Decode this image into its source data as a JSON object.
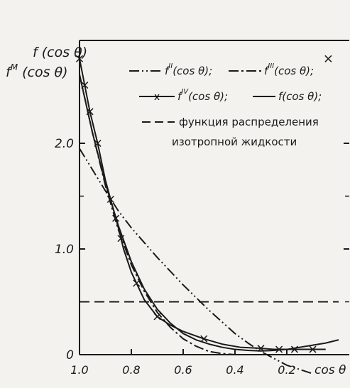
{
  "chart_data": {
    "type": "line",
    "ylabel": [
      "f (cos θ)",
      "f^M (cos θ)"
    ],
    "ylabel_parts": {
      "line1": "f (cos θ)",
      "line2_base": "f",
      "line2_sup": "M",
      "line2_arg": " (cos θ)"
    },
    "xlabel": "cos θ",
    "x_reversed": true,
    "xlim": [
      1.0,
      0.0
    ],
    "ylim": [
      0,
      2.6
    ],
    "x_ticks": [
      {
        "value": 1.0,
        "label": "1.0"
      },
      {
        "value": 0.8,
        "label": "0.8"
      },
      {
        "value": 0.6,
        "label": "0.6"
      },
      {
        "value": 0.4,
        "label": "0.4"
      },
      {
        "value": 0.2,
        "label": "0.2"
      }
    ],
    "y_ticks": [
      {
        "value": 0,
        "label": "0"
      },
      {
        "value": 1.0,
        "label": "1.0"
      },
      {
        "value": 2.0,
        "label": "2.0"
      }
    ],
    "grid": false,
    "legend_placement": "top-right",
    "legend": [
      {
        "base": "f",
        "sup": "II",
        "arg": "(cos θ);",
        "style": "dash-dot-dot"
      },
      {
        "base": "f",
        "sup": "III",
        "arg": "(cos θ);",
        "style": "dash-dot"
      },
      {
        "base": "f",
        "sup": "IV",
        "arg": "(cos θ);",
        "style": "dash-x"
      },
      {
        "base": "f",
        "sup": "",
        "arg": "(cos θ);",
        "style": "solid"
      },
      {
        "text_line1": "функция распределения",
        "text_line2": "изотропной жидкости",
        "style": "dashed"
      }
    ],
    "series": [
      {
        "name": "fII(cos θ)",
        "style": "dash-dot-dot",
        "x": [
          1.0,
          0.95,
          0.9,
          0.85,
          0.8,
          0.7,
          0.6,
          0.5,
          0.4,
          0.35,
          0.3,
          0.2,
          0.1
        ],
        "y": [
          1.95,
          1.75,
          1.55,
          1.36,
          1.2,
          0.92,
          0.66,
          0.42,
          0.2,
          0.11,
          0.03,
          -0.1,
          -0.18
        ]
      },
      {
        "name": "fIII(cos θ)",
        "style": "dash-dot",
        "x": [
          1.0,
          0.95,
          0.9,
          0.85,
          0.8,
          0.75,
          0.7,
          0.65,
          0.6,
          0.55,
          0.5,
          0.45,
          0.4
        ],
        "y": [
          2.65,
          2.1,
          1.6,
          1.18,
          0.85,
          0.6,
          0.4,
          0.26,
          0.15,
          0.08,
          0.03,
          0.01,
          0.0
        ]
      },
      {
        "name": "fIV(cos θ)",
        "style": "dash-x",
        "x": [
          1.0,
          0.98,
          0.96,
          0.93,
          0.9,
          0.87,
          0.85,
          0.83,
          0.8,
          0.75,
          0.7,
          0.65,
          0.6,
          0.52,
          0.45,
          0.38,
          0.3,
          0.25,
          0.2,
          0.15,
          0.1,
          0.05
        ],
        "y": [
          2.8,
          2.55,
          2.3,
          2.0,
          1.65,
          1.38,
          1.2,
          1.0,
          0.78,
          0.52,
          0.36,
          0.28,
          0.22,
          0.15,
          0.1,
          0.07,
          0.06,
          0.05,
          0.05,
          0.05,
          0.05,
          0.05
        ],
        "markers_x": [
          1.0,
          0.98,
          0.96,
          0.93,
          0.88,
          0.86,
          0.84,
          0.78,
          0.7,
          0.52,
          0.3,
          0.23,
          0.17,
          0.1,
          0.04
        ]
      },
      {
        "name": "f(cos θ)",
        "style": "solid",
        "x": [
          1.0,
          0.95,
          0.9,
          0.85,
          0.8,
          0.75,
          0.7,
          0.65,
          0.6,
          0.55,
          0.5,
          0.45,
          0.4,
          0.35,
          0.3,
          0.25,
          0.2,
          0.15,
          0.1,
          0.05,
          0.0
        ],
        "y": [
          2.65,
          2.1,
          1.62,
          1.22,
          0.88,
          0.62,
          0.43,
          0.3,
          0.2,
          0.14,
          0.1,
          0.07,
          0.05,
          0.04,
          0.035,
          0.04,
          0.05,
          0.07,
          0.09,
          0.11,
          0.14
        ]
      },
      {
        "name": "функция распределения изотропной жидкости",
        "style": "dashed",
        "x": [
          1.0,
          0.0
        ],
        "y": [
          0.5,
          0.5
        ]
      }
    ]
  }
}
